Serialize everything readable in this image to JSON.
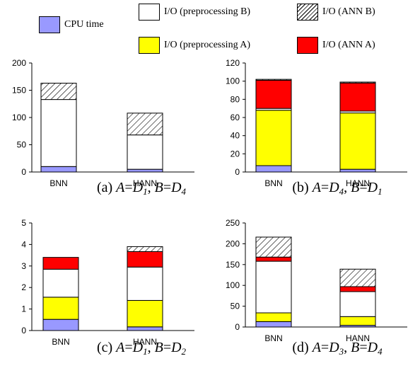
{
  "legend": {
    "items": [
      {
        "key": "cpu",
        "label": "CPU time",
        "color": "#9999ff"
      },
      {
        "key": "io_pre_b",
        "label": "I/O (preprocessing B)",
        "color": "#ffffff"
      },
      {
        "key": "io_ann_b",
        "label": "I/O (ANN B)",
        "color": "hatch"
      },
      {
        "key": "io_pre_a",
        "label": "I/O (preprocessing A)",
        "color": "#ffff00"
      },
      {
        "key": "io_ann_a",
        "label": "I/O (ANN A)",
        "color": "#ff0000"
      }
    ]
  },
  "chart_data": [
    {
      "type": "bar",
      "stacked": true,
      "caption": {
        "prefix": "(a) ",
        "text": "A=D1, B=D4",
        "parts": [
          [
            "(a) ",
            "n"
          ],
          [
            "A",
            "i"
          ],
          [
            "=",
            "n"
          ],
          [
            "D",
            "i"
          ],
          [
            "1",
            "s"
          ],
          [
            ", ",
            "n"
          ],
          [
            "B",
            "i"
          ],
          [
            "=",
            "n"
          ],
          [
            "D",
            "i"
          ],
          [
            "4",
            "s"
          ]
        ]
      },
      "categories": [
        "BNN",
        "HANN"
      ],
      "ylim": [
        0,
        200
      ],
      "yticks": [
        0,
        50,
        100,
        150,
        200
      ],
      "series": [
        {
          "key": "cpu",
          "values": [
            10,
            5
          ]
        },
        {
          "key": "io_pre_a",
          "values": [
            0,
            0
          ]
        },
        {
          "key": "io_pre_b",
          "values": [
            123,
            63
          ]
        },
        {
          "key": "io_ann_a",
          "values": [
            0,
            0
          ]
        },
        {
          "key": "io_ann_b",
          "values": [
            30,
            40
          ]
        }
      ]
    },
    {
      "type": "bar",
      "stacked": true,
      "caption": {
        "parts": [
          [
            "(b) ",
            "n"
          ],
          [
            "A",
            "i"
          ],
          [
            "=",
            "n"
          ],
          [
            "D",
            "i"
          ],
          [
            "4",
            "s"
          ],
          [
            ", ",
            "n"
          ],
          [
            "B",
            "i"
          ],
          [
            "=",
            "n"
          ],
          [
            "D",
            "i"
          ],
          [
            "1",
            "s"
          ]
        ]
      },
      "categories": [
        "BNN",
        "HANN"
      ],
      "ylim": [
        0,
        120
      ],
      "yticks": [
        0,
        20,
        40,
        60,
        80,
        100,
        120
      ],
      "series": [
        {
          "key": "cpu",
          "values": [
            7,
            3
          ]
        },
        {
          "key": "io_pre_a",
          "values": [
            61,
            62
          ]
        },
        {
          "key": "io_pre_b",
          "values": [
            2,
            2
          ]
        },
        {
          "key": "io_ann_a",
          "values": [
            31,
            31
          ]
        },
        {
          "key": "io_ann_b",
          "values": [
            1,
            1
          ]
        }
      ]
    },
    {
      "type": "bar",
      "stacked": true,
      "caption": {
        "parts": [
          [
            "(c) ",
            "n"
          ],
          [
            "A",
            "i"
          ],
          [
            "=",
            "n"
          ],
          [
            "D",
            "i"
          ],
          [
            "1",
            "s"
          ],
          [
            ", ",
            "n"
          ],
          [
            "B",
            "i"
          ],
          [
            "=",
            "n"
          ],
          [
            "D",
            "i"
          ],
          [
            "2",
            "s"
          ]
        ]
      },
      "categories": [
        "BNN",
        "HANN"
      ],
      "ylim": [
        0,
        5
      ],
      "yticks": [
        0,
        1,
        2,
        3,
        4,
        5
      ],
      "series": [
        {
          "key": "cpu",
          "values": [
            0.52,
            0.17
          ]
        },
        {
          "key": "io_pre_a",
          "values": [
            1.03,
            1.23
          ]
        },
        {
          "key": "io_pre_b",
          "values": [
            1.3,
            1.55
          ]
        },
        {
          "key": "io_ann_a",
          "values": [
            0.55,
            0.72
          ]
        },
        {
          "key": "io_ann_b",
          "values": [
            0,
            0.23
          ]
        }
      ]
    },
    {
      "type": "bar",
      "stacked": true,
      "caption": {
        "parts": [
          [
            "(d) ",
            "n"
          ],
          [
            "A",
            "i"
          ],
          [
            "=",
            "n"
          ],
          [
            "D",
            "i"
          ],
          [
            "3",
            "s"
          ],
          [
            ", ",
            "n"
          ],
          [
            "B",
            "i"
          ],
          [
            "=",
            "n"
          ],
          [
            "D",
            "i"
          ],
          [
            "4",
            "s"
          ]
        ]
      },
      "categories": [
        "BNN",
        "HANN"
      ],
      "ylim": [
        0,
        250
      ],
      "yticks": [
        0,
        50,
        100,
        150,
        200,
        250
      ],
      "series": [
        {
          "key": "cpu",
          "values": [
            13,
            4
          ]
        },
        {
          "key": "io_pre_a",
          "values": [
            21,
            21
          ]
        },
        {
          "key": "io_pre_b",
          "values": [
            124,
            60
          ]
        },
        {
          "key": "io_ann_a",
          "values": [
            10,
            12
          ]
        },
        {
          "key": "io_ann_b",
          "values": [
            48,
            42
          ]
        }
      ]
    }
  ]
}
